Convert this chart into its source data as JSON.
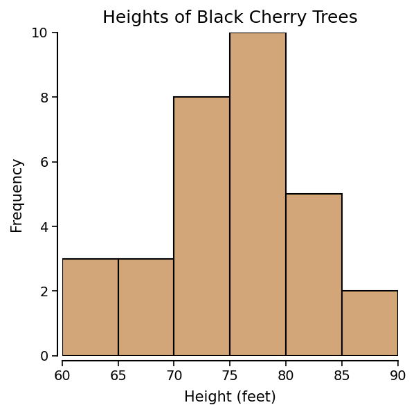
{
  "title": "Heights of Black Cherry Trees",
  "xlabel": "Height (feet)",
  "ylabel": "Frequency",
  "bin_edges": [
    60,
    65,
    70,
    75,
    80,
    85,
    90
  ],
  "frequencies": [
    3,
    3,
    8,
    10,
    5,
    2
  ],
  "bar_color": "#D2A679",
  "edge_color": "#000000",
  "edge_width": 1.5,
  "xlim": [
    60,
    90
  ],
  "ylim": [
    0,
    10
  ],
  "xticks": [
    60,
    65,
    70,
    75,
    80,
    85,
    90
  ],
  "yticks": [
    0,
    2,
    4,
    6,
    8,
    10
  ],
  "title_fontsize": 18,
  "label_fontsize": 15,
  "tick_fontsize": 14,
  "background_color": "#ffffff"
}
